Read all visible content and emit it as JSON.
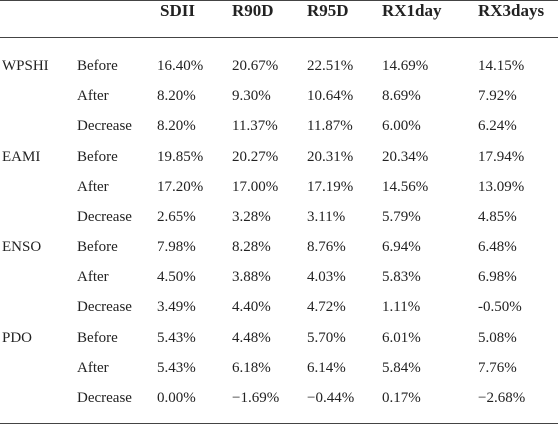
{
  "table": {
    "headers": [
      "SDII",
      "R90D",
      "R95D",
      "RX1day",
      "RX3days"
    ],
    "groups": [
      {
        "name": "WPSHI",
        "rows": [
          {
            "label": "Before",
            "values": [
              "16.40%",
              "20.67%",
              "22.51%",
              "14.69%",
              "14.15%"
            ]
          },
          {
            "label": "After",
            "values": [
              "8.20%",
              "9.30%",
              "10.64%",
              "8.69%",
              "7.92%"
            ]
          },
          {
            "label": "Decrease",
            "values": [
              "8.20%",
              "11.37%",
              "11.87%",
              "6.00%",
              "6.24%"
            ]
          }
        ]
      },
      {
        "name": "EAMI",
        "rows": [
          {
            "label": "Before",
            "values": [
              "19.85%",
              "20.27%",
              "20.31%",
              "20.34%",
              "17.94%"
            ]
          },
          {
            "label": "After",
            "values": [
              "17.20%",
              "17.00%",
              "17.19%",
              "14.56%",
              "13.09%"
            ]
          },
          {
            "label": "Decrease",
            "values": [
              "2.65%",
              "3.28%",
              "3.11%",
              "5.79%",
              "4.85%"
            ]
          }
        ]
      },
      {
        "name": "ENSO",
        "rows": [
          {
            "label": "Before",
            "values": [
              "7.98%",
              "8.28%",
              "8.76%",
              "6.94%",
              "6.48%"
            ]
          },
          {
            "label": "After",
            "values": [
              "4.50%",
              "3.88%",
              "4.03%",
              "5.83%",
              "6.98%"
            ]
          },
          {
            "label": "Decrease",
            "values": [
              "3.49%",
              "4.40%",
              "4.72%",
              "1.11%",
              "-0.50%"
            ]
          }
        ]
      },
      {
        "name": "PDO",
        "rows": [
          {
            "label": "Before",
            "values": [
              "5.43%",
              "4.48%",
              "5.70%",
              "6.01%",
              "5.08%"
            ]
          },
          {
            "label": "After",
            "values": [
              "5.43%",
              "6.18%",
              "6.14%",
              "5.84%",
              "7.76%"
            ]
          },
          {
            "label": "Decrease",
            "values": [
              "0.00%",
              "−1.69%",
              "−0.44%",
              "0.17%",
              "−2.68%"
            ]
          }
        ]
      }
    ]
  }
}
